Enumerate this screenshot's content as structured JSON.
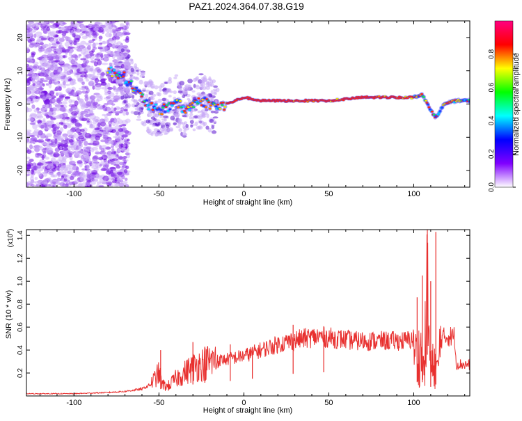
{
  "title": "PAZ1.2024.364.07.38.G19",
  "colors": {
    "snr_line": "#e8302f",
    "spectrum_band": "#ff2a1a",
    "axes": "#000000"
  },
  "chart_data": [
    {
      "type": "heatmap",
      "xlabel": "Height of straight line (km)",
      "ylabel": "Frequency (Hz)",
      "xlim": [
        -128,
        133
      ],
      "ylim": [
        -25,
        25
      ],
      "xticks": [
        -100,
        -50,
        0,
        50,
        100
      ],
      "yticks": [
        -20,
        -10,
        0,
        10,
        20
      ],
      "colorbar": {
        "label": "Normalized spectral amplitude",
        "range": [
          0,
          1
        ],
        "ticks": [
          "0.0",
          "0.2",
          "0.4",
          "0.6",
          "0.8"
        ],
        "colormap": [
          "#ffffff",
          "#8000ff",
          "#0000ff",
          "#00ffff",
          "#00ff00",
          "#ffff00",
          "#ff0000",
          "#ff0080"
        ]
      },
      "ridge": {
        "x": [
          -80,
          -72,
          -65,
          -60,
          -55,
          -50,
          -45,
          -40,
          -35,
          -30,
          -25,
          -20,
          -15,
          -10,
          -5,
          0,
          10,
          30,
          50,
          70,
          90,
          100,
          105,
          110,
          113,
          118,
          125,
          133
        ],
        "y": [
          10,
          9,
          5,
          2,
          -1,
          -2,
          -1,
          1,
          -2,
          0,
          1,
          0,
          -1,
          0,
          1,
          2,
          1,
          1,
          1,
          2,
          2,
          2,
          3,
          -2,
          -4,
          0,
          1,
          1
        ]
      }
    },
    {
      "type": "line",
      "xlabel": "Height of straight line (km)",
      "ylabel": "SNR (10 * v/v)",
      "multiplier": "(x10",
      "multiplier_exp": "4",
      "xlim": [
        -128,
        133
      ],
      "ylim": [
        0,
        1.45
      ],
      "xticks": [
        -100,
        -50,
        0,
        50,
        100
      ],
      "yticks": [
        "0.2",
        "0.4",
        "0.6",
        "0.8",
        "1.0",
        "1.2",
        "1.4"
      ],
      "envelope": {
        "x": [
          -128,
          -100,
          -80,
          -70,
          -60,
          -55,
          -50,
          -48,
          -45,
          -40,
          -35,
          -30,
          -25,
          -20,
          -10,
          0,
          10,
          20,
          28,
          35,
          45,
          55,
          65,
          75,
          85,
          95,
          100,
          102,
          104,
          106,
          108,
          110,
          112,
          114,
          116,
          120,
          124,
          125,
          133
        ],
        "y": [
          0.02,
          0.02,
          0.03,
          0.04,
          0.06,
          0.1,
          0.2,
          0.1,
          0.08,
          0.15,
          0.2,
          0.25,
          0.28,
          0.3,
          0.32,
          0.35,
          0.4,
          0.45,
          0.48,
          0.5,
          0.52,
          0.5,
          0.48,
          0.48,
          0.48,
          0.48,
          0.5,
          0.3,
          0.4,
          0.2,
          0.9,
          0.2,
          0.3,
          0.2,
          0.5,
          0.52,
          0.52,
          0.28,
          0.27
        ]
      },
      "spikes": [
        {
          "x": -49,
          "y": 0.4
        },
        {
          "x": -30,
          "y": 0.47
        },
        {
          "x": -23,
          "y": 0.42
        },
        {
          "x": -8,
          "y": 0.45
        },
        {
          "x": 5,
          "y": 0.42
        },
        {
          "x": 29,
          "y": 0.62
        },
        {
          "x": 47,
          "y": 0.59
        },
        {
          "x": 102,
          "y": 0.86
        },
        {
          "x": 105,
          "y": 1.05
        },
        {
          "x": 108,
          "y": 1.45
        },
        {
          "x": 110,
          "y": 1.0
        },
        {
          "x": 113,
          "y": 1.43
        }
      ]
    }
  ]
}
